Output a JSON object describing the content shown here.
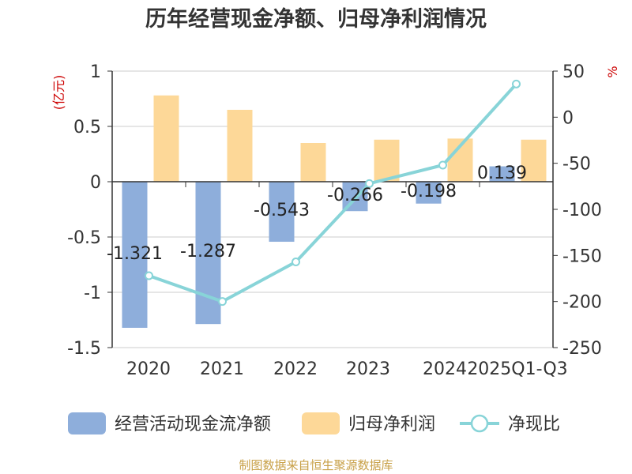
{
  "chart_data": {
    "type": "bar+line",
    "title": "历年经营现金净额、归母净利润情况",
    "categories": [
      "2020",
      "2021",
      "2022",
      "2023",
      "2024",
      "2025Q1-Q3"
    ],
    "left_unit": "(亿元)",
    "right_unit": "%",
    "left_ticks": [
      "1",
      "0.5",
      "0",
      "-0.5",
      "-1",
      "-1.5"
    ],
    "right_ticks": [
      "50",
      "0",
      "-50",
      "-100",
      "-150",
      "-200",
      "-250"
    ],
    "ylim_left": [
      -1.5,
      1
    ],
    "ylim_right": [
      -250,
      50
    ],
    "series": [
      {
        "name": "经营活动现金流净额",
        "type": "bar",
        "axis": "left",
        "color": "#8eaedb",
        "values": [
          -1.321,
          -1.287,
          -0.543,
          -0.266,
          -0.198,
          0.139
        ],
        "labels": [
          "-1.321",
          "-1.287",
          "-0.543",
          "-0.266",
          "-0.198",
          "0.139"
        ]
      },
      {
        "name": "归母净利润",
        "type": "bar",
        "axis": "left",
        "color": "#fdd898",
        "values": [
          0.78,
          0.65,
          0.35,
          0.38,
          0.39,
          0.38
        ]
      },
      {
        "name": "净现比",
        "type": "line",
        "axis": "right",
        "color": "#88d4d8",
        "values": [
          -172,
          -200,
          -157,
          -72,
          -52,
          36
        ]
      }
    ],
    "legend_position": "bottom",
    "source": "制图数据来自恒生聚源数据库"
  }
}
